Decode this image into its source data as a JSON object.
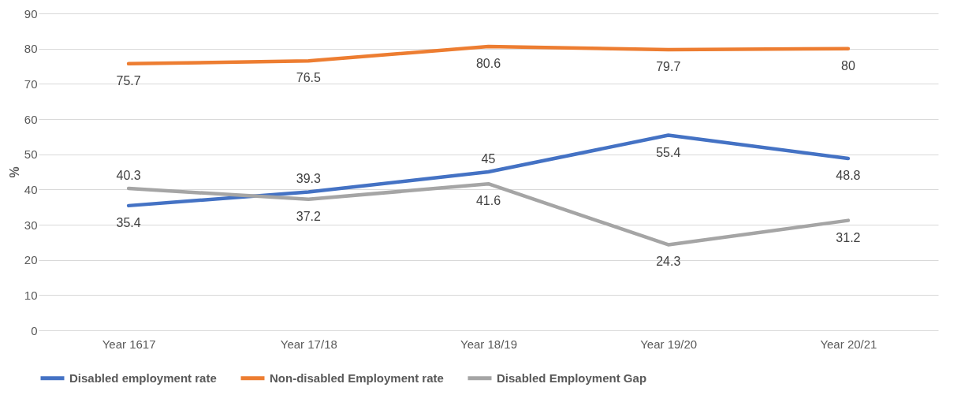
{
  "chart_data": {
    "type": "line",
    "ylabel": "%",
    "categories": [
      "Year 1617",
      "Year 17/18",
      "Year 18/19",
      "Year 19/20",
      "Year 20/21"
    ],
    "series": [
      {
        "name": "Disabled employment rate",
        "color": "#4472c4",
        "values": [
          35.4,
          39.3,
          45,
          55.4,
          48.8
        ]
      },
      {
        "name": "Non-disabled Employment rate",
        "color": "#ed7d31",
        "values": [
          75.7,
          76.5,
          80.6,
          79.7,
          80
        ]
      },
      {
        "name": "Disabled Employment Gap",
        "color": "#a5a5a5",
        "values": [
          40.3,
          37.2,
          41.6,
          24.3,
          31.2
        ]
      }
    ],
    "ylim": [
      0,
      90
    ],
    "yticks": [
      0,
      10,
      20,
      30,
      40,
      50,
      60,
      70,
      80,
      90
    ],
    "grid": "y",
    "legend": "bottom",
    "data_labels": true,
    "marker": "none",
    "line_style": "solid"
  }
}
